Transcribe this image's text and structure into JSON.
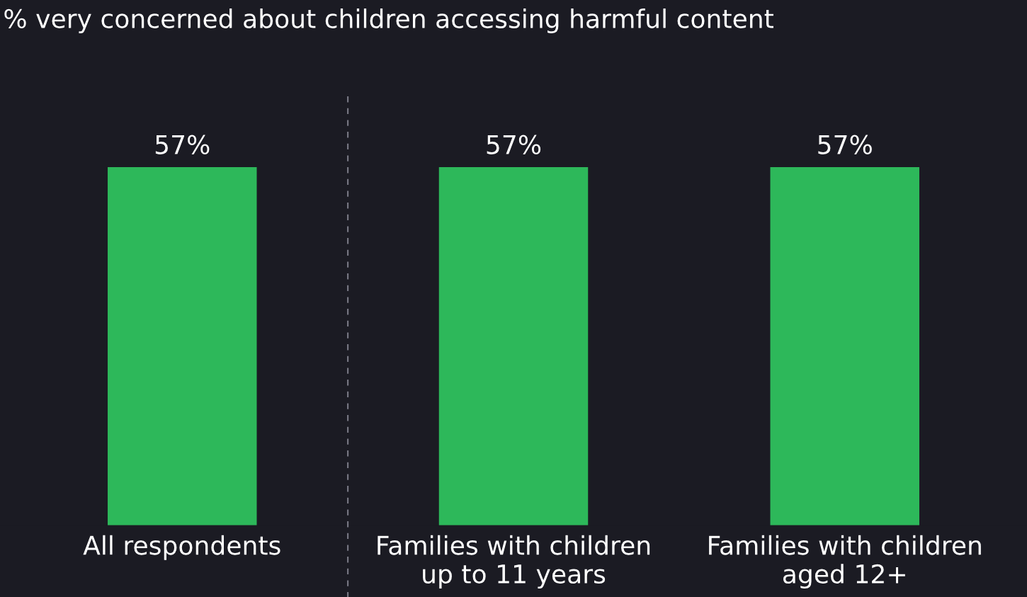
{
  "chart_data": {
    "type": "bar",
    "title": "% very concerned about children accessing harmful content",
    "categories": [
      "All respondents",
      "Families with children\nup to 11 years",
      "Families with children\naged 12+"
    ],
    "values": [
      57,
      57,
      57
    ],
    "value_labels": [
      "57%",
      "57%",
      "57%"
    ],
    "color": "#2db85a",
    "grid": false,
    "legend": false
  }
}
